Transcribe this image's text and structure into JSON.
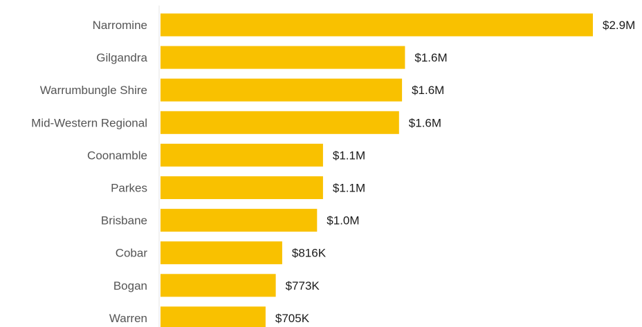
{
  "chart_data": {
    "type": "bar",
    "orientation": "horizontal",
    "categories": [
      "Narromine",
      "Gilgandra",
      "Warrumbungle Shire",
      "Mid-Western Regional",
      "Coonamble",
      "Parkes",
      "Brisbane",
      "Cobar",
      "Bogan",
      "Warren"
    ],
    "values": [
      2900000,
      1640000,
      1620000,
      1600000,
      1090000,
      1090000,
      1050000,
      816000,
      773000,
      705000
    ],
    "data_labels": [
      "$2.9M",
      "$1.6M",
      "$1.6M",
      "$1.6M",
      "$1.1M",
      "$1.1M",
      "$1.0M",
      "$816K",
      "$773K",
      "$705K"
    ],
    "title": "",
    "xlabel": "",
    "ylabel": "",
    "xlim": [
      0,
      2900000
    ],
    "grid": false,
    "legend": "none",
    "colors": {
      "bar": "#f9c100",
      "axis_line": "#e6e6e6",
      "category_text": "#555555",
      "value_text": "#1a1a1a"
    }
  }
}
